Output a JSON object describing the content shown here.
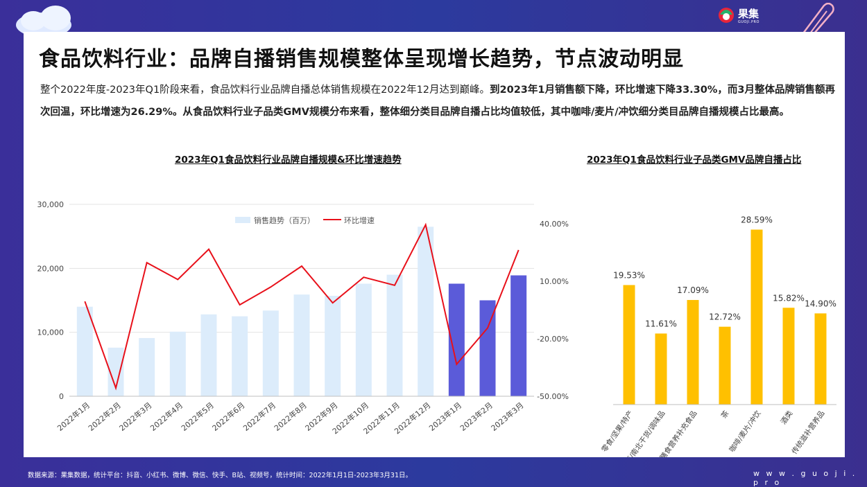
{
  "brand": {
    "name": "果集",
    "sub": "GUOJI.PRO"
  },
  "title": "食品饮料行业：品牌自播销售规模整体呈现增长趋势，节点波动明显",
  "para": {
    "p1": "整个2022年度-2023年Q1阶段来看，食品饮料行业品牌自播总体销售规模在2022年12月达到巅峰。",
    "p2": "到2023年1月销售额下降，环比增速下降33.30%，而3月整体品牌销售额再次回温，环比增速为26.29%。从食品饮料行业子品类GMV规模分布来看，整体细分类目品牌自播占比均值较低，其中咖啡/麦片/冲饮细分类目品牌自播规模占比最高。"
  },
  "footer": {
    "source": "数据来源：果集数据，统计平台：抖音、小红书、微博、微信、快手、B站、视频号，统计时间：2022年1月1日-2023年3月31日。",
    "url": "w w w . g u o j i . p r o"
  },
  "colors": {
    "light_bar": "#dcecfb",
    "dark_bar": "#5b5bd9",
    "line": "#e8101a",
    "yellow": "#ffc000"
  },
  "chart_data": [
    {
      "type": "bar",
      "title": "2023年Q1食品饮料行业品牌自播规模&环比增速趋势",
      "categories": [
        "2022年1月",
        "2022年2月",
        "2022年3月",
        "2022年4月",
        "2022年5月",
        "2022年6月",
        "2022年7月",
        "2022年8月",
        "2022年9月",
        "2022年10月",
        "2022年11月",
        "2022年12月",
        "2023年1月",
        "2023年2月",
        "2023年3月"
      ],
      "series": [
        {
          "name": "销售趋势（百万）",
          "type": "bar",
          "axis": "left",
          "values": [
            14000,
            7600,
            9100,
            10100,
            12800,
            12500,
            13400,
            15900,
            15700,
            17600,
            19000,
            26500,
            17600,
            15000,
            18900
          ]
        },
        {
          "name": "环比增速",
          "type": "line",
          "axis": "right",
          "values": [
            -0.5,
            -45.7,
            19.7,
            10.9,
            26.7,
            -2.3,
            7.0,
            17.9,
            -1.3,
            12.1,
            7.9,
            39.5,
            -33.3,
            -14.4,
            26.29
          ]
        }
      ],
      "left_axis": {
        "ylim": [
          0,
          30000
        ],
        "ticks": [
          "0",
          "10,000",
          "20,000",
          "30,000"
        ]
      },
      "right_axis": {
        "ylim": [
          -50,
          40
        ],
        "ticks": [
          "-50.00%",
          "-20.00%",
          "10.00%",
          "40.00%"
        ]
      },
      "legend": "top-center",
      "grid": true
    },
    {
      "type": "bar",
      "title": "2023年Q1食品饮料行业子品类GMV品牌自播占比",
      "categories": [
        "零食/坚果/特产",
        "粮油米面/南北干货/调味品",
        "保健食品/膳食营养补充食品",
        "茶",
        "咖啡/麦片/冲饮",
        "酒类",
        "传统滋补营养品"
      ],
      "values": [
        19.53,
        11.61,
        17.09,
        12.72,
        28.59,
        15.82,
        14.9
      ],
      "labels": [
        "19.53%",
        "11.61%",
        "17.09%",
        "12.72%",
        "28.59%",
        "15.82%",
        "14.90%"
      ],
      "grid": false
    }
  ]
}
